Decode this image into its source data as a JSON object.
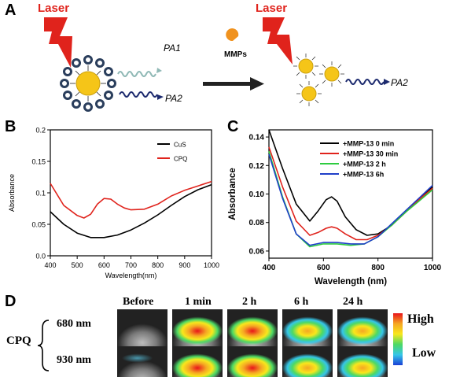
{
  "panels": {
    "A": {
      "letter": "A",
      "laser_left": "Laser",
      "laser_right": "Laser",
      "pa1": "PA1",
      "pa2_left": "PA2",
      "pa2_right": "PA2",
      "enzyme_label": "MMPs"
    },
    "B": {
      "letter": "B"
    },
    "C": {
      "letter": "C"
    },
    "D": {
      "letter": "D",
      "sample": "CPQ",
      "rows": [
        "680 nm",
        "930 nm"
      ],
      "columns": [
        "Before",
        "1 min",
        "2 h",
        "6 h",
        "24 h"
      ],
      "scale_high": "High",
      "scale_low": "Low"
    }
  },
  "colors": {
    "laser": "#e0231c",
    "gold": "#f5c518",
    "cus": "#000000",
    "cpq": "#e0231c"
  },
  "chart_data": [
    {
      "type": "line",
      "panel": "B",
      "xlabel": "Wavelength(nm)",
      "ylabel": "Absorbance",
      "xlim": [
        400,
        1000
      ],
      "ylim": [
        0.0,
        0.2
      ],
      "xticks": [
        400,
        500,
        600,
        700,
        800,
        900,
        1000
      ],
      "yticks": [
        0.0,
        0.05,
        0.1,
        0.15,
        0.2
      ],
      "ytick_labels": [
        "0.0",
        "0.05",
        "0.1",
        "0.15",
        "0.2"
      ],
      "legend_position": "top-right",
      "series": [
        {
          "name": "CuS",
          "color": "#000000",
          "x": [
            400,
            450,
            500,
            550,
            600,
            650,
            700,
            750,
            800,
            850,
            900,
            950,
            1000
          ],
          "y": [
            0.07,
            0.05,
            0.036,
            0.029,
            0.029,
            0.033,
            0.041,
            0.052,
            0.065,
            0.08,
            0.094,
            0.105,
            0.113
          ]
        },
        {
          "name": "CPQ",
          "color": "#e0231c",
          "x": [
            400,
            450,
            500,
            525,
            550,
            575,
            600,
            625,
            650,
            675,
            700,
            750,
            800,
            850,
            900,
            950,
            1000
          ],
          "y": [
            0.115,
            0.08,
            0.064,
            0.06,
            0.066,
            0.082,
            0.091,
            0.09,
            0.082,
            0.076,
            0.073,
            0.074,
            0.082,
            0.095,
            0.104,
            0.111,
            0.118
          ]
        }
      ]
    },
    {
      "type": "line",
      "panel": "C",
      "xlabel": "Wavelength (nm)",
      "ylabel": "Absorbance",
      "xlim": [
        400,
        1000
      ],
      "ylim": [
        0.055,
        0.145
      ],
      "xticks": [
        400,
        600,
        800,
        1000
      ],
      "yticks": [
        0.06,
        0.08,
        0.1,
        0.12,
        0.14
      ],
      "ytick_labels": [
        "0.06",
        "0.08",
        "0.10",
        "0.12",
        "0.14"
      ],
      "legend_position": "top-right",
      "series": [
        {
          "name": "+MMP-13   0 min",
          "color": "#000000",
          "x": [
            400,
            450,
            500,
            550,
            580,
            610,
            630,
            650,
            680,
            720,
            760,
            800,
            850,
            900,
            950,
            1000
          ],
          "y": [
            0.145,
            0.118,
            0.093,
            0.081,
            0.088,
            0.096,
            0.098,
            0.095,
            0.084,
            0.075,
            0.071,
            0.072,
            0.078,
            0.087,
            0.096,
            0.105
          ]
        },
        {
          "name": "+MMP-13   30 min",
          "color": "#e0231c",
          "x": [
            400,
            450,
            500,
            550,
            580,
            610,
            630,
            650,
            680,
            720,
            760,
            800,
            850,
            900,
            950,
            1000
          ],
          "y": [
            0.133,
            0.105,
            0.081,
            0.071,
            0.073,
            0.076,
            0.077,
            0.076,
            0.072,
            0.068,
            0.068,
            0.071,
            0.078,
            0.087,
            0.096,
            0.104
          ]
        },
        {
          "name": "+MMP-13   2 h",
          "color": "#2ecc40",
          "x": [
            400,
            450,
            500,
            550,
            600,
            650,
            700,
            750,
            800,
            850,
            900,
            950,
            1000
          ],
          "y": [
            0.13,
            0.098,
            0.072,
            0.063,
            0.065,
            0.065,
            0.064,
            0.065,
            0.07,
            0.078,
            0.087,
            0.095,
            0.103
          ]
        },
        {
          "name": "+MMP-13   6h",
          "color": "#1f3fc8",
          "x": [
            400,
            450,
            500,
            550,
            600,
            650,
            700,
            750,
            800,
            850,
            900,
            950,
            1000
          ],
          "y": [
            0.128,
            0.097,
            0.072,
            0.064,
            0.066,
            0.066,
            0.065,
            0.065,
            0.07,
            0.079,
            0.088,
            0.097,
            0.106
          ]
        }
      ]
    }
  ]
}
